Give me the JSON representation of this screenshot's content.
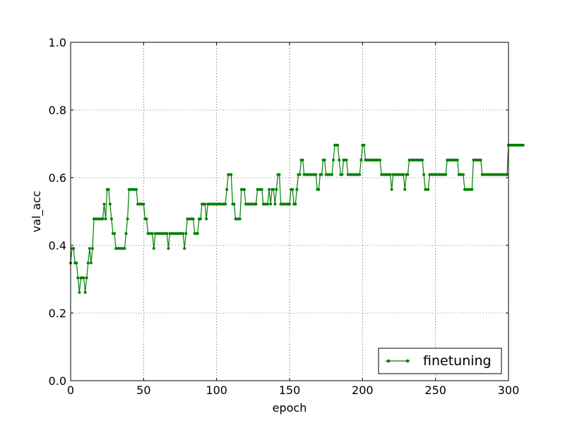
{
  "chart_data": {
    "type": "line",
    "title": "",
    "xlabel": "epoch",
    "ylabel": "val_acc",
    "xlim": [
      0,
      300
    ],
    "ylim": [
      0.0,
      1.0
    ],
    "xticks": [
      0,
      50,
      100,
      150,
      200,
      250,
      300
    ],
    "xtick_labels": [
      "0",
      "50",
      "100",
      "150",
      "200",
      "250",
      "300"
    ],
    "yticks": [
      0.0,
      0.2,
      0.4,
      0.6,
      0.8,
      1.0
    ],
    "ytick_labels": [
      "0.0",
      "0.2",
      "0.4",
      "0.6",
      "0.8",
      "1.0"
    ],
    "grid": true,
    "legend_position": "bottom-right",
    "series": [
      {
        "name": "finetuning",
        "color": "#008000",
        "marker": "dot",
        "values": [
          0.348,
          0.391,
          0.391,
          0.348,
          0.348,
          0.304,
          0.261,
          0.304,
          0.304,
          0.304,
          0.261,
          0.304,
          0.348,
          0.391,
          0.348,
          0.391,
          0.478,
          0.478,
          0.478,
          0.478,
          0.478,
          0.478,
          0.478,
          0.522,
          0.478,
          0.565,
          0.565,
          0.522,
          0.478,
          0.435,
          0.435,
          0.391,
          0.391,
          0.391,
          0.391,
          0.391,
          0.391,
          0.391,
          0.435,
          0.478,
          0.565,
          0.565,
          0.565,
          0.565,
          0.565,
          0.565,
          0.522,
          0.522,
          0.522,
          0.522,
          0.522,
          0.478,
          0.478,
          0.435,
          0.435,
          0.435,
          0.435,
          0.391,
          0.435,
          0.435,
          0.435,
          0.435,
          0.435,
          0.435,
          0.435,
          0.435,
          0.435,
          0.391,
          0.435,
          0.435,
          0.435,
          0.435,
          0.435,
          0.435,
          0.435,
          0.435,
          0.435,
          0.435,
          0.391,
          0.435,
          0.478,
          0.478,
          0.478,
          0.478,
          0.478,
          0.435,
          0.435,
          0.435,
          0.478,
          0.478,
          0.522,
          0.522,
          0.522,
          0.478,
          0.522,
          0.522,
          0.522,
          0.522,
          0.522,
          0.522,
          0.522,
          0.522,
          0.522,
          0.522,
          0.522,
          0.522,
          0.522,
          0.565,
          0.609,
          0.609,
          0.609,
          0.522,
          0.522,
          0.478,
          0.478,
          0.478,
          0.478,
          0.565,
          0.565,
          0.565,
          0.522,
          0.522,
          0.522,
          0.522,
          0.522,
          0.522,
          0.522,
          0.522,
          0.565,
          0.565,
          0.565,
          0.565,
          0.522,
          0.522,
          0.522,
          0.522,
          0.565,
          0.522,
          0.565,
          0.565,
          0.522,
          0.565,
          0.609,
          0.609,
          0.522,
          0.522,
          0.522,
          0.522,
          0.522,
          0.522,
          0.522,
          0.565,
          0.565,
          0.522,
          0.522,
          0.565,
          0.609,
          0.609,
          0.652,
          0.652,
          0.609,
          0.609,
          0.609,
          0.609,
          0.609,
          0.609,
          0.609,
          0.609,
          0.609,
          0.565,
          0.565,
          0.609,
          0.609,
          0.652,
          0.652,
          0.609,
          0.609,
          0.609,
          0.609,
          0.609,
          0.652,
          0.696,
          0.696,
          0.696,
          0.652,
          0.609,
          0.609,
          0.652,
          0.652,
          0.652,
          0.609,
          0.609,
          0.609,
          0.609,
          0.609,
          0.609,
          0.609,
          0.609,
          0.609,
          0.652,
          0.696,
          0.696,
          0.652,
          0.652,
          0.652,
          0.652,
          0.652,
          0.652,
          0.652,
          0.652,
          0.652,
          0.652,
          0.652,
          0.609,
          0.609,
          0.609,
          0.609,
          0.609,
          0.609,
          0.609,
          0.565,
          0.609,
          0.609,
          0.609,
          0.609,
          0.609,
          0.609,
          0.609,
          0.609,
          0.565,
          0.609,
          0.609,
          0.652,
          0.652,
          0.652,
          0.652,
          0.652,
          0.652,
          0.652,
          0.652,
          0.652,
          0.652,
          0.609,
          0.565,
          0.565,
          0.565,
          0.609,
          0.609,
          0.609,
          0.609,
          0.609,
          0.609,
          0.609,
          0.609,
          0.609,
          0.609,
          0.609,
          0.609,
          0.652,
          0.652,
          0.652,
          0.652,
          0.652,
          0.652,
          0.652,
          0.652,
          0.609,
          0.609,
          0.609,
          0.609,
          0.565,
          0.565,
          0.565,
          0.565,
          0.565,
          0.565,
          0.652,
          0.652,
          0.652,
          0.652,
          0.652,
          0.652,
          0.609,
          0.609,
          0.609,
          0.609,
          0.609,
          0.609,
          0.609,
          0.609,
          0.609,
          0.609,
          0.609,
          0.609,
          0.609,
          0.609,
          0.609,
          0.609,
          0.609,
          0.609,
          0.696,
          0.696,
          0.696,
          0.696,
          0.696,
          0.696,
          0.696,
          0.696,
          0.696,
          0.696,
          0.696
        ]
      }
    ]
  }
}
